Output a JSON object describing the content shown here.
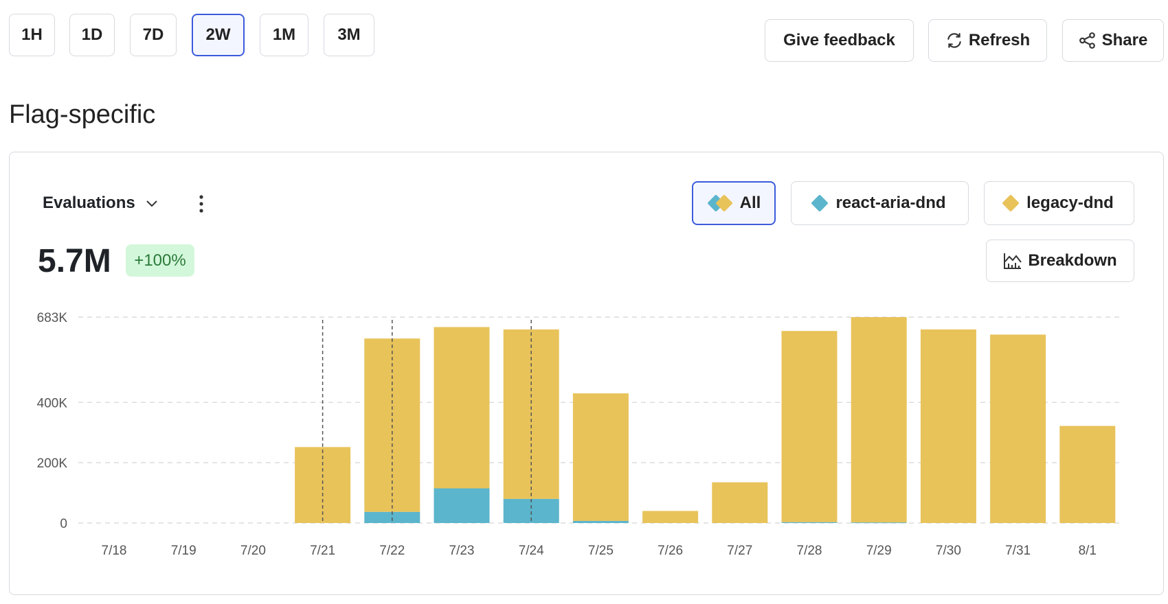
{
  "time_ranges": [
    {
      "label": "1H"
    },
    {
      "label": "1D"
    },
    {
      "label": "7D"
    },
    {
      "label": "2W",
      "selected": true
    },
    {
      "label": "1M"
    },
    {
      "label": "3M"
    }
  ],
  "header": {
    "feedback": "Give feedback",
    "refresh": "Refresh",
    "share": "Share"
  },
  "section_title": "Flag-specific",
  "card": {
    "metric_selector": "Evaluations",
    "filters": [
      {
        "label": "All",
        "selected": true
      },
      {
        "label": "react-aria-dnd"
      },
      {
        "label": "legacy-dnd"
      }
    ],
    "breakdown": "Breakdown",
    "total": "5.7M",
    "change": "+100%"
  },
  "colors": {
    "react-aria-dnd": "#5bb5cc",
    "legacy-dnd": "#e8c35a",
    "accent": "#3b5bdb"
  },
  "chart_data": {
    "type": "bar",
    "stacked": true,
    "categories": [
      "7/18",
      "7/19",
      "7/20",
      "7/21",
      "7/22",
      "7/23",
      "7/24",
      "7/25",
      "7/26",
      "7/27",
      "7/28",
      "7/29",
      "7/30",
      "7/31",
      "8/1"
    ],
    "series": [
      {
        "name": "react-aria-dnd",
        "color": "#5bb5cc",
        "values": [
          0,
          0,
          0,
          0,
          37000,
          115000,
          80000,
          7000,
          0,
          0,
          3000,
          2000,
          0,
          0,
          0
        ]
      },
      {
        "name": "legacy-dnd",
        "color": "#e8c35a",
        "values": [
          0,
          0,
          0,
          252000,
          575000,
          535000,
          562000,
          423000,
          40000,
          135000,
          634000,
          681000,
          642000,
          625000,
          322000
        ]
      }
    ],
    "yticks": [
      {
        "v": 0,
        "label": "0"
      },
      {
        "v": 200000,
        "label": "200K"
      },
      {
        "v": 400000,
        "label": "400K"
      },
      {
        "v": 683000,
        "label": "683K"
      }
    ],
    "ylim": [
      0,
      683000
    ],
    "grid": true,
    "annotations": [
      "7/21",
      "7/22",
      "7/24"
    ]
  }
}
